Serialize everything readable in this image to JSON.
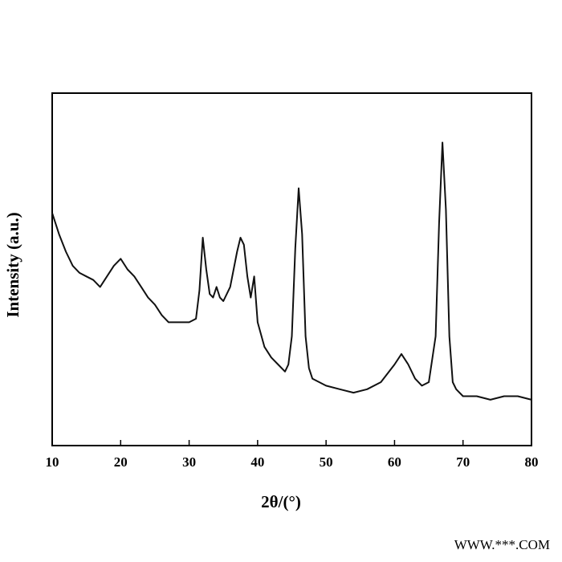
{
  "chart_data": {
    "type": "line",
    "x_label": "2θ/(°)",
    "y_label": "Intensity (a.u.)",
    "watermark": "WWW.***.COM",
    "xlim": [
      10,
      80
    ],
    "xticks": [
      10,
      20,
      30,
      40,
      50,
      60,
      70,
      80
    ],
    "ylim": [
      0,
      100
    ],
    "series": [
      {
        "color": "#111111",
        "x": [
          10,
          11,
          12,
          13,
          14,
          15,
          16,
          17,
          18,
          19,
          20,
          21,
          22,
          23,
          24,
          25,
          26,
          27,
          28,
          29,
          30,
          31,
          31.5,
          32,
          32.5,
          33,
          33.5,
          34,
          34.5,
          35,
          36,
          37,
          37.5,
          38,
          38.5,
          39,
          39.5,
          40,
          41,
          42,
          43,
          44,
          44.5,
          45,
          45.5,
          46,
          46.5,
          47,
          47.5,
          48,
          50,
          52,
          54,
          56,
          58,
          60,
          61,
          62,
          63,
          64,
          65,
          66,
          66.5,
          67,
          67.5,
          68,
          68.5,
          69,
          70,
          72,
          74,
          76,
          78,
          80
        ],
        "values": [
          66,
          60,
          55,
          51,
          49,
          48,
          47,
          45,
          48,
          51,
          53,
          50,
          48,
          45,
          42,
          40,
          37,
          35,
          35,
          35,
          35,
          36,
          44,
          59,
          50,
          43,
          42,
          45,
          42,
          41,
          45,
          55,
          59,
          57,
          48,
          42,
          48,
          35,
          28,
          25,
          23,
          21,
          23,
          31,
          56,
          73,
          60,
          31,
          22,
          19,
          17,
          16,
          15,
          16,
          18,
          23,
          26,
          23,
          19,
          17,
          18,
          31,
          63,
          86,
          67,
          31,
          18,
          16,
          14,
          14,
          13,
          14,
          14,
          13
        ]
      }
    ]
  }
}
